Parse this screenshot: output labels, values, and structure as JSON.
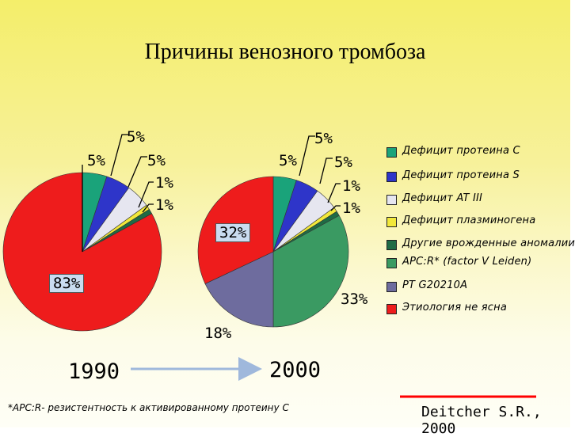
{
  "title": "Причины венозного тромбоза",
  "footnote": "*APC:R- резистентность к активированному протеину C",
  "citation": "Deitcher S.R., 2000",
  "colors": {
    "protein_c": "#1aa37a",
    "protein_s": "#2e35c9",
    "at3": "#e6e6f0",
    "plasminogen": "#f2e83a",
    "other": "#1f6b45",
    "apcr": "#3a9a62",
    "pt": "#6e6c9e",
    "unknown": "#ee1c1c",
    "arrow": "#9fb8dc",
    "cite_line": "#ff0000"
  },
  "chart_data": [
    {
      "type": "pie",
      "year_label": "1990",
      "slices": [
        {
          "key": "unknown",
          "value": 83,
          "label": "83%"
        },
        {
          "key": "protein_c",
          "value": 5,
          "label": "5%"
        },
        {
          "key": "protein_s",
          "value": 5,
          "label": "5%"
        },
        {
          "key": "at3",
          "value": 5,
          "label": "5%"
        },
        {
          "key": "plasminogen",
          "value": 1,
          "label": "1%"
        },
        {
          "key": "other",
          "value": 1,
          "label": "1%"
        }
      ]
    },
    {
      "type": "pie",
      "year_label": "2000",
      "slices": [
        {
          "key": "unknown",
          "value": 32,
          "label": "32%"
        },
        {
          "key": "protein_c",
          "value": 5,
          "label": "5%"
        },
        {
          "key": "protein_s",
          "value": 5,
          "label": "5%"
        },
        {
          "key": "at3",
          "value": 5,
          "label": "5%"
        },
        {
          "key": "plasminogen",
          "value": 1,
          "label": "1%"
        },
        {
          "key": "other",
          "value": 1,
          "label": "1%"
        },
        {
          "key": "apcr",
          "value": 33,
          "label": "33%"
        },
        {
          "key": "pt",
          "value": 18,
          "label": "18%"
        }
      ]
    }
  ],
  "legend": [
    {
      "key": "protein_c",
      "label": "Дефицит протеина C"
    },
    {
      "key": "protein_s",
      "label": "Дефицит протеина S"
    },
    {
      "key": "at3",
      "label": "Дефицит AT III"
    },
    {
      "key": "plasminogen",
      "label": "Дефицит плазминогена"
    },
    {
      "key": "other",
      "label": "Другие врожденные аномалии"
    },
    {
      "key": "apcr",
      "label": "APC:R* (factor V Leiden)"
    },
    {
      "key": "pt",
      "label": "PT G20210A"
    },
    {
      "key": "unknown",
      "label": "Этиология не ясна"
    }
  ]
}
